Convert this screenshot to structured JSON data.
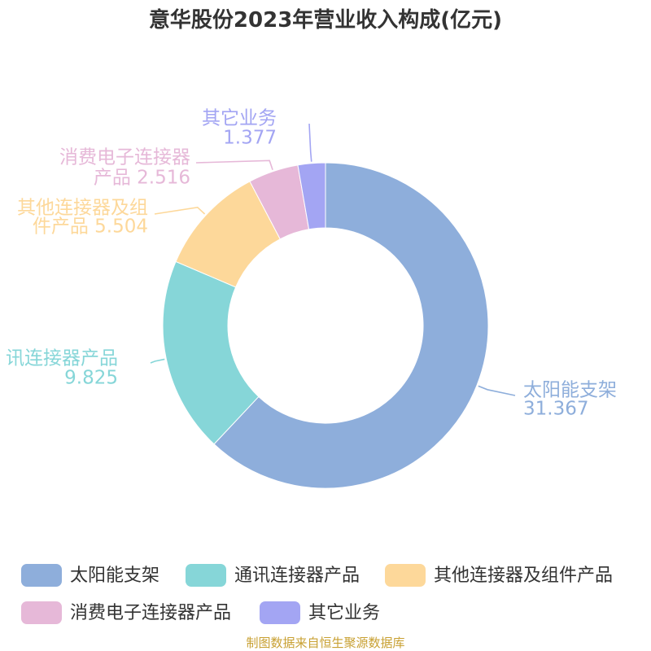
{
  "chart_data": {
    "type": "pie",
    "title": "意华股份2023年营业收入构成(亿元)",
    "inner_radius_ratio": 0.6,
    "categories": [
      "太阳能支架",
      "通讯连接器产品",
      "其他连接器及组件产品",
      "消费电子连接器产品",
      "其它业务"
    ],
    "values": [
      31.367,
      9.825,
      5.504,
      2.516,
      1.377
    ],
    "label_lines": [
      [
        "太阳能支架",
        "31.367"
      ],
      [
        "讯连接器产品",
        "9.825"
      ],
      [
        "其他连接器及组",
        "件产品 5.504"
      ],
      [
        "消费电子连接器",
        "产品 2.516"
      ],
      [
        "其它业务",
        "1.377"
      ]
    ],
    "colors": [
      "#8eaedb",
      "#86d6d8",
      "#fdd89a",
      "#e6b8d8",
      "#a3a5f3"
    ],
    "legend_position": "bottom"
  },
  "source": {
    "text": "制图数据来自恒生聚源数据库",
    "color": "#c8a032"
  }
}
